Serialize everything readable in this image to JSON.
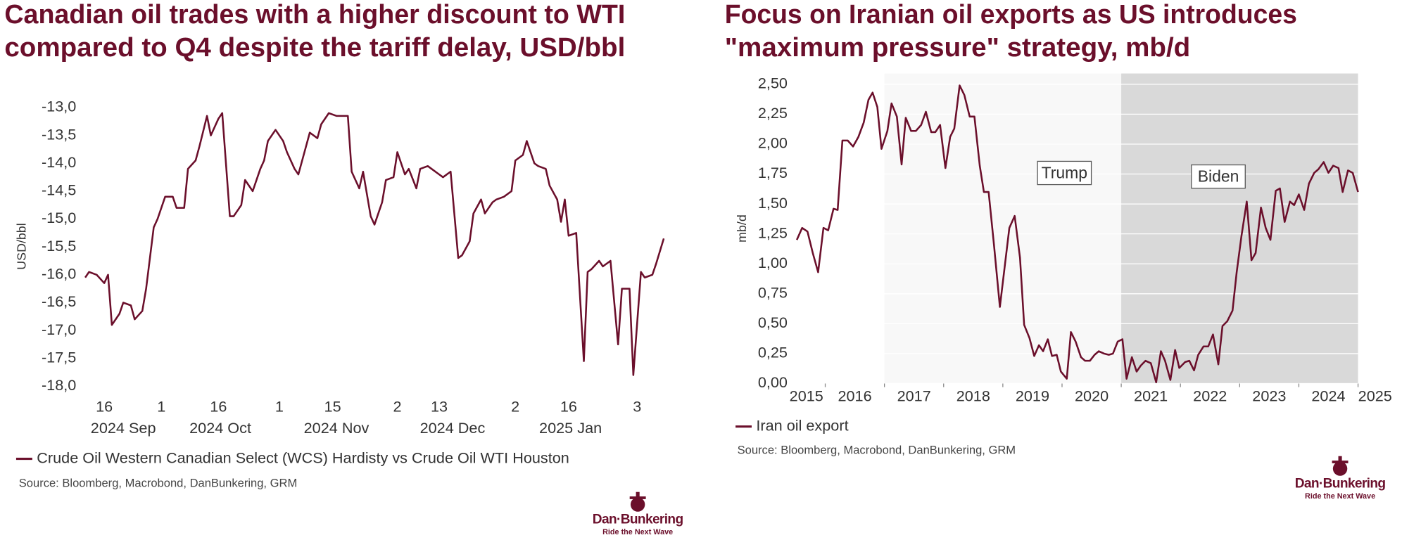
{
  "chart_data": [
    {
      "type": "line",
      "title": [
        "Canadian oil trades with a higher discount to WTI",
        "compared to Q4 despite the tariff delay, USD/bbl"
      ],
      "y_label": "USD/bbl",
      "x": [
        "2024-09-11",
        "2024-09-12",
        "2024-09-14",
        "2024-09-16",
        "2024-09-17",
        "2024-09-18",
        "2024-09-20",
        "2024-09-21",
        "2024-09-23",
        "2024-09-24",
        "2024-09-26",
        "2024-09-27",
        "2024-09-29",
        "2024-09-30",
        "2024-10-02",
        "2024-10-04",
        "2024-10-05",
        "2024-10-07",
        "2024-10-08",
        "2024-10-10",
        "2024-10-11",
        "2024-10-13",
        "2024-10-14",
        "2024-10-16",
        "2024-10-17",
        "2024-10-19",
        "2024-10-20",
        "2024-10-22",
        "2024-10-23",
        "2024-10-25",
        "2024-10-27",
        "2024-10-28",
        "2024-10-29",
        "2024-10-31",
        "2024-11-02",
        "2024-11-03",
        "2024-11-05",
        "2024-11-06",
        "2024-11-08",
        "2024-11-09",
        "2024-11-11",
        "2024-11-12",
        "2024-11-14",
        "2024-11-16",
        "2024-11-17",
        "2024-11-19",
        "2024-11-20",
        "2024-11-22",
        "2024-11-23",
        "2024-11-25",
        "2024-11-26",
        "2024-11-28",
        "2024-11-29",
        "2024-12-01",
        "2024-12-02",
        "2024-12-04",
        "2024-12-05",
        "2024-12-07",
        "2024-12-08",
        "2024-12-10",
        "2024-12-11",
        "2024-12-13",
        "2024-12-14",
        "2024-12-16",
        "2024-12-18",
        "2024-12-19",
        "2024-12-21",
        "2024-12-22",
        "2024-12-24",
        "2024-12-25",
        "2024-12-27",
        "2024-12-28",
        "2024-12-30",
        "2025-01-01",
        "2025-01-02",
        "2025-01-04",
        "2025-01-05",
        "2025-01-07",
        "2025-01-08",
        "2025-01-10",
        "2025-01-11",
        "2025-01-13",
        "2025-01-14",
        "2025-01-15",
        "2025-01-16",
        "2025-01-18",
        "2025-01-20",
        "2025-01-21",
        "2025-01-22",
        "2025-01-24",
        "2025-01-25",
        "2025-01-27",
        "2025-01-29",
        "2025-01-30",
        "2025-02-01",
        "2025-02-02",
        "2025-02-04",
        "2025-02-05",
        "2025-02-07",
        "2025-02-08",
        "2025-02-10"
      ],
      "series": [
        {
          "name": "Crude Oil Western Canadian Select (WCS) Hardisty vs Crude Oil WTI Houston",
          "color": "#6b0f2b",
          "values": [
            -16.05,
            -15.95,
            -16.0,
            -16.15,
            -16.0,
            -16.9,
            -16.7,
            -16.5,
            -16.55,
            -16.8,
            -16.65,
            -16.25,
            -15.15,
            -15.0,
            -14.6,
            -14.6,
            -14.8,
            -14.8,
            -14.1,
            -13.95,
            -13.7,
            -13.15,
            -13.5,
            -13.2,
            -13.1,
            -14.95,
            -14.95,
            -14.75,
            -14.3,
            -14.5,
            -14.1,
            -13.95,
            -13.6,
            -13.4,
            -13.6,
            -13.8,
            -14.1,
            -14.2,
            -13.7,
            -13.45,
            -13.55,
            -13.3,
            -13.1,
            -13.15,
            -13.15,
            -13.15,
            -14.15,
            -14.45,
            -14.15,
            -14.95,
            -15.1,
            -14.7,
            -14.3,
            -14.25,
            -13.8,
            -14.2,
            -14.1,
            -14.45,
            -14.1,
            -14.05,
            -14.1,
            -14.2,
            -14.25,
            -14.15,
            -15.7,
            -15.65,
            -15.4,
            -14.9,
            -14.65,
            -14.9,
            -14.7,
            -14.65,
            -14.6,
            -14.5,
            -13.95,
            -13.85,
            -13.6,
            -14.0,
            -14.05,
            -14.1,
            -14.4,
            -14.65,
            -15.05,
            -14.65,
            -15.3,
            -15.25,
            -17.55,
            -15.95,
            -15.9,
            -15.75,
            -15.85,
            -15.75,
            -17.25,
            -16.25,
            -16.25,
            -17.8,
            -15.95,
            -16.05,
            -16.0,
            -15.8,
            -15.35
          ]
        }
      ],
      "xlim": [
        "2024-09-11",
        "2025-02-10"
      ],
      "xticks": [
        {
          "value": "2024-09-16",
          "label": "16"
        },
        {
          "value": "2024-10-01",
          "label": "1"
        },
        {
          "value": "2024-10-16",
          "label": "16"
        },
        {
          "value": "2024-11-01",
          "label": "1"
        },
        {
          "value": "2024-11-15",
          "label": "15"
        },
        {
          "value": "2024-12-02",
          "label": "2"
        },
        {
          "value": "2024-12-13",
          "label": "13"
        },
        {
          "value": "2025-01-02",
          "label": "2"
        },
        {
          "value": "2025-01-16",
          "label": "16"
        },
        {
          "value": "2025-02-03",
          "label": "3"
        }
      ],
      "x_period_labels": [
        "2024 Sep",
        "2024 Oct",
        "2024 Nov",
        "2024 Dec",
        "2025 Jan"
      ],
      "ylim": [
        -18,
        -13
      ],
      "yticks": [
        {
          "value": -13,
          "label": "-13,0"
        },
        {
          "value": -13.5,
          "label": "-13,5"
        },
        {
          "value": -14,
          "label": "-14,0"
        },
        {
          "value": -14.5,
          "label": "-14,5"
        },
        {
          "value": -15,
          "label": "-15,0"
        },
        {
          "value": -15.5,
          "label": "-15,5"
        },
        {
          "value": -16,
          "label": "-16,0"
        },
        {
          "value": -16.5,
          "label": "-16,5"
        },
        {
          "value": -17,
          "label": "-17,0"
        },
        {
          "value": -17.5,
          "label": "-17,5"
        },
        {
          "value": -18,
          "label": "-18,0"
        }
      ],
      "grid": false,
      "source": "Source: Bloomberg, Macrobond, DanBunkering, GRM"
    },
    {
      "type": "line",
      "title": [
        "Focus on Iranian oil exports as US introduces",
        "\"maximum pressure\" strategy, mb/d"
      ],
      "y_label": "mb/d",
      "x": [
        2015.52,
        2015.61,
        2015.7,
        2015.79,
        2015.88,
        2015.97,
        2016.05,
        2016.14,
        2016.21,
        2016.29,
        2016.38,
        2016.47,
        2016.56,
        2016.65,
        2016.73,
        2016.8,
        2016.88,
        2016.95,
        2017.05,
        2017.12,
        2017.21,
        2017.29,
        2017.36,
        2017.45,
        2017.53,
        2017.62,
        2017.7,
        2017.79,
        2017.86,
        2017.94,
        2018.03,
        2018.11,
        2018.18,
        2018.27,
        2018.35,
        2018.44,
        2018.52,
        2018.61,
        2018.68,
        2018.76,
        2018.85,
        2018.95,
        2019.03,
        2019.11,
        2019.2,
        2019.29,
        2019.36,
        2019.45,
        2019.53,
        2019.61,
        2019.68,
        2019.76,
        2019.83,
        2019.91,
        2019.98,
        2020.08,
        2020.15,
        2020.23,
        2020.32,
        2020.39,
        2020.47,
        2020.55,
        2020.62,
        2020.71,
        2020.79,
        2020.86,
        2020.94,
        2021.02,
        2021.09,
        2021.18,
        2021.26,
        2021.33,
        2021.41,
        2021.5,
        2021.59,
        2021.67,
        2021.74,
        2021.83,
        2021.91,
        2021.98,
        2022.08,
        2022.15,
        2022.23,
        2022.3,
        2022.39,
        2022.47,
        2022.55,
        2022.64,
        2022.71,
        2022.79,
        2022.88,
        2022.95,
        2023.03,
        2023.12,
        2023.2,
        2023.27,
        2023.36,
        2023.44,
        2023.52,
        2023.61,
        2023.68,
        2023.76,
        2023.85,
        2023.92,
        2024.0,
        2024.09,
        2024.17,
        2024.26,
        2024.33,
        2024.42,
        2024.5,
        2024.58,
        2024.67,
        2024.74,
        2024.83,
        2024.91,
        2025.0
      ],
      "series": [
        {
          "name": "Iran oil export",
          "color": "#6b0f2b",
          "values": [
            1.2,
            1.3,
            1.27,
            1.09,
            0.93,
            1.3,
            1.28,
            1.46,
            1.45,
            2.03,
            2.03,
            1.98,
            2.06,
            2.18,
            2.37,
            2.43,
            2.31,
            1.96,
            2.11,
            2.34,
            2.23,
            1.83,
            2.22,
            2.11,
            2.11,
            2.16,
            2.27,
            2.1,
            2.1,
            2.16,
            1.8,
            2.06,
            2.13,
            2.49,
            2.41,
            2.23,
            2.23,
            1.82,
            1.6,
            1.6,
            1.16,
            0.64,
            0.97,
            1.3,
            1.4,
            1.05,
            0.49,
            0.38,
            0.23,
            0.32,
            0.27,
            0.37,
            0.23,
            0.24,
            0.1,
            0.04,
            0.43,
            0.35,
            0.22,
            0.19,
            0.19,
            0.24,
            0.27,
            0.25,
            0.24,
            0.25,
            0.35,
            0.37,
            0.04,
            0.22,
            0.1,
            0.15,
            0.19,
            0.17,
            0.01,
            0.27,
            0.19,
            0.03,
            0.28,
            0.13,
            0.18,
            0.19,
            0.11,
            0.24,
            0.31,
            0.31,
            0.41,
            0.16,
            0.48,
            0.52,
            0.61,
            0.93,
            1.23,
            1.52,
            1.03,
            1.09,
            1.47,
            1.3,
            1.2,
            1.61,
            1.63,
            1.35,
            1.52,
            1.49,
            1.58,
            1.45,
            1.67,
            1.76,
            1.79,
            1.85,
            1.76,
            1.82,
            1.8,
            1.6,
            1.78,
            1.76,
            1.6
          ]
        }
      ],
      "xlim": [
        2015.5,
        2025
      ],
      "xticks": [
        2015,
        2016,
        2017,
        2018,
        2019,
        2020,
        2021,
        2022,
        2023,
        2024,
        2025
      ],
      "ylim": [
        0,
        2.5
      ],
      "yticks": [
        {
          "value": 0,
          "label": "0,00"
        },
        {
          "value": 0.25,
          "label": "0,25"
        },
        {
          "value": 0.5,
          "label": "0,50"
        },
        {
          "value": 0.75,
          "label": "0,75"
        },
        {
          "value": 1,
          "label": "1,00"
        },
        {
          "value": 1.25,
          "label": "1,25"
        },
        {
          "value": 1.5,
          "label": "1,50"
        },
        {
          "value": 1.75,
          "label": "1,75"
        },
        {
          "value": 2,
          "label": "2,00"
        },
        {
          "value": 2.25,
          "label": "2,25"
        },
        {
          "value": 2.5,
          "label": "2,50"
        }
      ],
      "grid": true,
      "grid_color": "#ffffff",
      "periods": [
        {
          "label": "Trump",
          "start": 2017,
          "end": 2021,
          "color": "#f8f8f8"
        },
        {
          "label": "Biden",
          "start": 2021,
          "end": 2025,
          "color": "#d9d9d9"
        }
      ],
      "source": "Source: Bloomberg, Macrobond, DanBunkering, GRM"
    }
  ],
  "branding": {
    "name": "Dan·Bunkering",
    "tagline": "Ride the Next Wave"
  }
}
